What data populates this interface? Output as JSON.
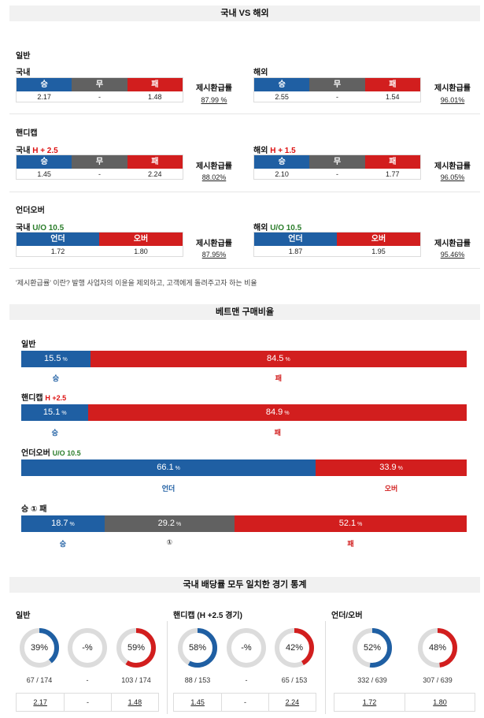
{
  "section1": {
    "title": "국내 VS 해외",
    "general": {
      "label": "일반",
      "domestic": {
        "name": "국내",
        "headers": [
          "승",
          "무",
          "패"
        ],
        "values": [
          "2.17",
          "-",
          "1.48"
        ],
        "refund_label": "제시환급률",
        "refund": "87.99 %"
      },
      "overseas": {
        "name": "해외",
        "headers": [
          "승",
          "무",
          "패"
        ],
        "values": [
          "2.55",
          "-",
          "1.54"
        ],
        "refund_label": "제시환급률",
        "refund": "96.01%"
      }
    },
    "handicap": {
      "label": "핸디캡",
      "domestic": {
        "name": "국내",
        "line": "H + 2.5",
        "headers": [
          "승",
          "무",
          "패"
        ],
        "values": [
          "1.45",
          "-",
          "2.24"
        ],
        "refund_label": "제시환급률",
        "refund": "88.02%"
      },
      "overseas": {
        "name": "해외",
        "line": "H + 1.5",
        "headers": [
          "승",
          "무",
          "패"
        ],
        "values": [
          "2.10",
          "-",
          "1.77"
        ],
        "refund_label": "제시환급률",
        "refund": "96.05%"
      }
    },
    "underover": {
      "label": "언더오버",
      "domestic": {
        "name": "국내",
        "line": "U/O 10.5",
        "headers": [
          "언더",
          "오버"
        ],
        "values": [
          "1.72",
          "1.80"
        ],
        "refund_label": "제시환급률",
        "refund": "87.95%"
      },
      "overseas": {
        "name": "해외",
        "line": "U/O 10.5",
        "headers": [
          "언더",
          "오버"
        ],
        "values": [
          "1.87",
          "1.95"
        ],
        "refund_label": "제시환급률",
        "refund": "95.46%"
      }
    },
    "note": "'제시환급률' 이란? 발행 사업자의 이윤을 제외하고, 고객에게 돌려주고자 하는 비율"
  },
  "section2": {
    "title": "베트맨 구매비율",
    "general": {
      "label": "일반",
      "left": 15.5,
      "right": 84.5,
      "left_text": "15.5",
      "right_text": "84.5",
      "left_label": "승",
      "right_label": "패"
    },
    "handicap": {
      "label": "핸디캡",
      "line": "H +2.5",
      "left": 15.1,
      "right": 84.9,
      "left_text": "15.1",
      "right_text": "84.9",
      "left_label": "승",
      "right_label": "패"
    },
    "underover": {
      "label": "언더오버",
      "line": "U/O 10.5",
      "left": 66.1,
      "right": 33.9,
      "left_text": "66.1",
      "right_text": "33.9",
      "left_label": "언더",
      "right_label": "오버"
    },
    "wdl": {
      "label": "승 ① 패",
      "left": 18.7,
      "mid": 29.2,
      "right": 52.1,
      "left_text": "18.7",
      "mid_text": "29.2",
      "right_text": "52.1",
      "left_label": "승",
      "mid_label": "①",
      "right_label": "패"
    },
    "unit": "%"
  },
  "section3": {
    "title": "국내 배당률 모두 일치한 경기 통계",
    "general": {
      "label": "일반",
      "donuts": [
        {
          "pct": 39,
          "text": "39%",
          "color": "#1f5fa3"
        },
        {
          "pct": 0,
          "text": "-%",
          "color": "#616161"
        },
        {
          "pct": 59,
          "text": "59%",
          "color": "#d21e1e"
        }
      ],
      "counts": [
        "67 / 174",
        "-",
        "103 / 174"
      ],
      "odds": [
        "2.17",
        "-",
        "1.48"
      ]
    },
    "handicap": {
      "label": "핸디캡 (H +2.5 경기)",
      "donuts": [
        {
          "pct": 58,
          "text": "58%",
          "color": "#1f5fa3"
        },
        {
          "pct": 0,
          "text": "-%",
          "color": "#616161"
        },
        {
          "pct": 42,
          "text": "42%",
          "color": "#d21e1e"
        }
      ],
      "counts": [
        "88 / 153",
        "-",
        "65 / 153"
      ],
      "odds": [
        "1.45",
        "-",
        "2.24"
      ]
    },
    "underover": {
      "label": "언더/오버",
      "donuts": [
        {
          "pct": 52,
          "text": "52%",
          "color": "#1f5fa3"
        },
        {
          "pct": 48,
          "text": "48%",
          "color": "#d21e1e"
        }
      ],
      "counts": [
        "332 / 639",
        "307 / 639"
      ],
      "odds": [
        "1.72",
        "1.80"
      ]
    }
  }
}
